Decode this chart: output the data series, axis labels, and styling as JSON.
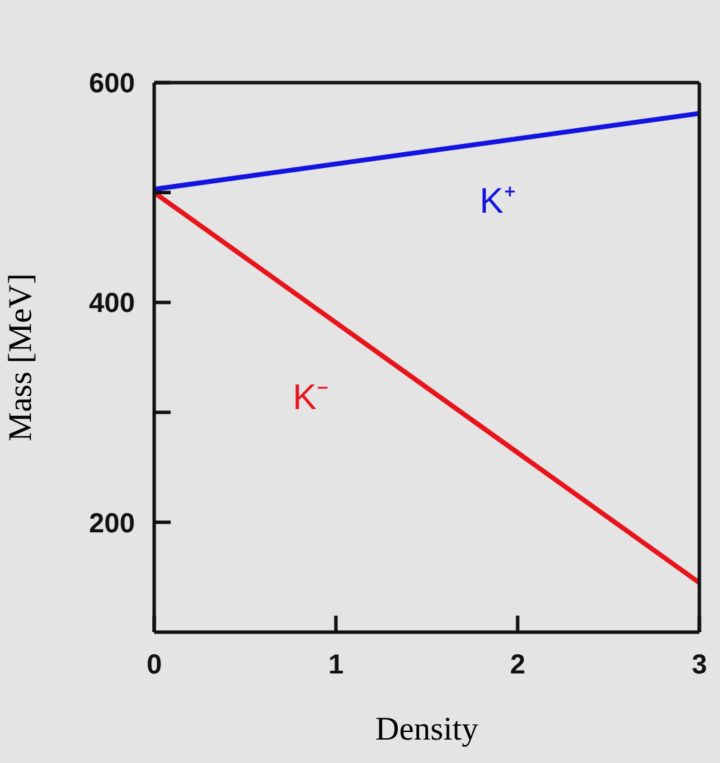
{
  "chart_data": {
    "type": "line",
    "xlabel": "Density",
    "ylabel": "Mass [MeV]",
    "x": [
      0,
      3
    ],
    "series": [
      {
        "name": "K⁺",
        "color": "#1414e0",
        "values": [
          503,
          572
        ]
      },
      {
        "name": "K⁻",
        "color": "#e8141c",
        "values": [
          500,
          145
        ]
      }
    ],
    "xlim": [
      0,
      3
    ],
    "xticks": [
      0,
      1,
      2,
      3
    ],
    "ylim": [
      100,
      600
    ],
    "yticks": [
      200,
      {
        "value": 300,
        "label": null
      },
      400,
      {
        "value": 500,
        "label": null
      },
      600
    ],
    "marker": "none",
    "line_style": "solid"
  }
}
